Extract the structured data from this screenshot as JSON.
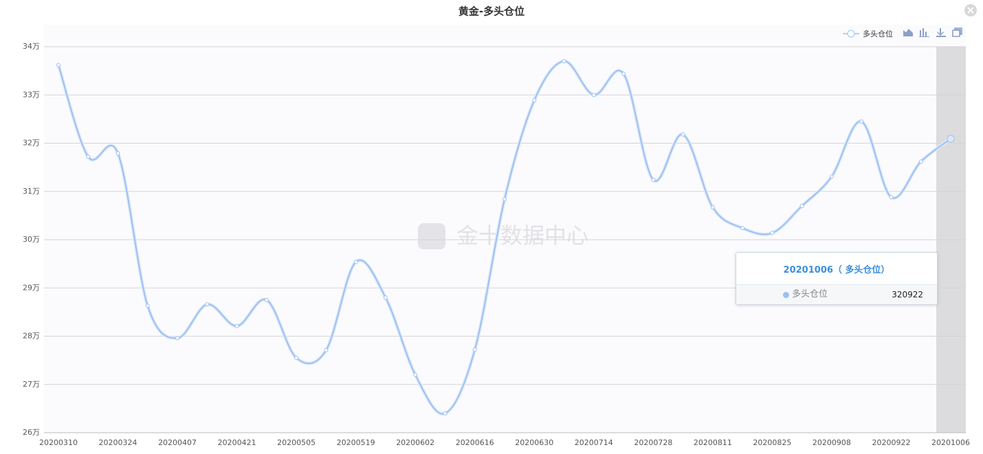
{
  "chart_data": {
    "type": "line",
    "title": "黄金-多头仓位",
    "watermark": "金十数据中心",
    "categories": [
      "20200310",
      null,
      "20200324",
      null,
      "20200407",
      null,
      "20200421",
      null,
      "20200505",
      null,
      "20200519",
      null,
      "20200602",
      null,
      "20200616",
      null,
      "20200630",
      null,
      "20200714",
      null,
      "20200728",
      null,
      "20200811",
      null,
      "20200825",
      null,
      "20200908",
      null,
      "20200922",
      null,
      "20201006"
    ],
    "series": [
      {
        "name": "多头仓位",
        "color": "#9cc0f0",
        "values": [
          336200,
          317200,
          317900,
          286300,
          279600,
          286600,
          282100,
          287500,
          275500,
          277100,
          295400,
          288000,
          272000,
          264000,
          277200,
          308400,
          328900,
          337000,
          330000,
          334400,
          312400,
          321800,
          306700,
          302400,
          301400,
          307000,
          313100,
          324500,
          308800,
          316200,
          320922
        ]
      }
    ],
    "ylim": [
      260000,
      340000
    ],
    "yticks": [
      {
        "value": 260000,
        "label": "26万"
      },
      {
        "value": 270000,
        "label": "27万"
      },
      {
        "value": 280000,
        "label": "28万"
      },
      {
        "value": 290000,
        "label": "29万"
      },
      {
        "value": 300000,
        "label": "30万"
      },
      {
        "value": 310000,
        "label": "31万"
      },
      {
        "value": 320000,
        "label": "32万"
      },
      {
        "value": 330000,
        "label": "33万"
      },
      {
        "value": 340000,
        "label": "34万"
      }
    ],
    "grid": true,
    "legend": "top-right",
    "tooltip": {
      "title": "20201006（ 多头仓位）"
    }
  }
}
